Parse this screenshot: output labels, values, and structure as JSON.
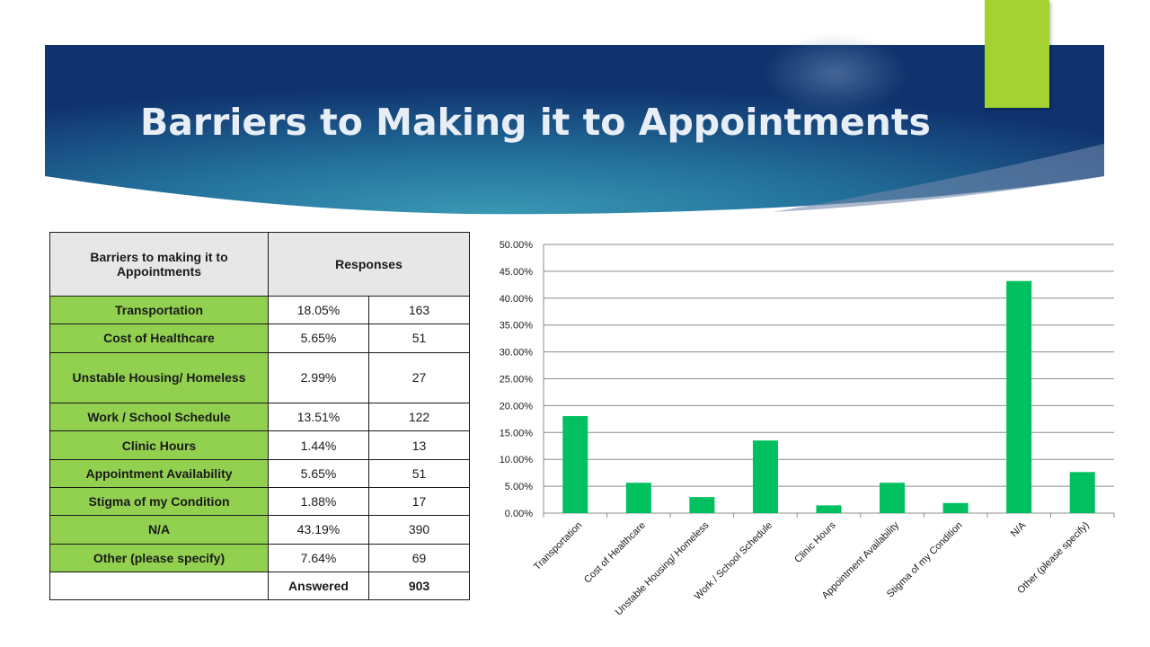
{
  "slide": {
    "title": "Barriers to Making it to Appointments",
    "colors": {
      "banner_dark": "#0e2a66",
      "banner_mid": "#2e84a8",
      "accent": "#a4d233",
      "label_cell": "#92d050",
      "bar": "#00c060"
    }
  },
  "table": {
    "header_col1": "Barriers to making it to Appointments",
    "header_col2": "Responses",
    "rows": [
      {
        "label": "Transportation",
        "percent": "18.05%",
        "count": "163"
      },
      {
        "label": "Cost of Healthcare",
        "percent": "5.65%",
        "count": "51"
      },
      {
        "label": "Unstable Housing/ Homeless",
        "percent": "2.99%",
        "count": "27"
      },
      {
        "label": "Work / School Schedule",
        "percent": "13.51%",
        "count": "122"
      },
      {
        "label": "Clinic Hours",
        "percent": "1.44%",
        "count": "13"
      },
      {
        "label": "Appointment Availability",
        "percent": "5.65%",
        "count": "51"
      },
      {
        "label": "Stigma of my Condition",
        "percent": "1.88%",
        "count": "17"
      },
      {
        "label": "N/A",
        "percent": "43.19%",
        "count": "390"
      },
      {
        "label": "Other (please specify)",
        "percent": "7.64%",
        "count": "69"
      }
    ],
    "footer_label": "Answered",
    "footer_value": "903"
  },
  "chart_data": {
    "type": "bar",
    "categories": [
      "Transportation",
      "Cost of Healthcare",
      "Unstable Housing/ Homeless",
      "Work / School Schedule",
      "Clinic Hours",
      "Appointment Availability",
      "Stigma of my Condition",
      "N/A",
      "Other (please specify)"
    ],
    "values": [
      18.05,
      5.65,
      2.99,
      13.51,
      1.44,
      5.65,
      1.88,
      43.19,
      7.64
    ],
    "ylim": [
      0,
      50
    ],
    "yticks": [
      "0.00%",
      "5.00%",
      "10.00%",
      "15.00%",
      "20.00%",
      "25.00%",
      "30.00%",
      "35.00%",
      "40.00%",
      "45.00%",
      "50.00%"
    ],
    "grid": true,
    "legend": "none",
    "title": "",
    "xlabel": "",
    "ylabel": ""
  }
}
